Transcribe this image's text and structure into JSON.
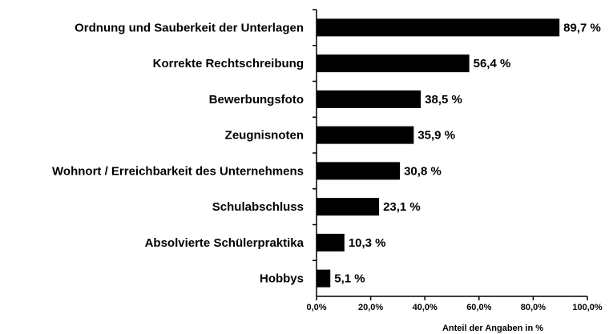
{
  "chart_data": {
    "type": "bar",
    "orientation": "horizontal",
    "x_axis_label": "Anteil der Angaben in %",
    "categories": [
      "Ordnung und Sauberkeit der Unterlagen",
      "Korrekte Rechtschreibung",
      "Bewerbungsfoto",
      "Zeugnisnoten",
      "Wohnort / Erreichbarkeit des Unternehmens",
      "Schulabschluss",
      "Absolvierte Schülerpraktika",
      "Hobbys"
    ],
    "values": [
      89.7,
      56.4,
      38.5,
      35.9,
      30.8,
      23.1,
      10.3,
      5.1
    ],
    "value_labels": [
      "89,7 %",
      "56,4 %",
      "38,5 %",
      "35,9 %",
      "30,8 %",
      "23,1 %",
      "10,3 %",
      "5,1 %"
    ],
    "color": "#000000",
    "xlim": [
      0,
      100
    ],
    "xticks": [
      {
        "value": 0,
        "label": "0,0%"
      },
      {
        "value": 20,
        "label": "20,0%"
      },
      {
        "value": 40,
        "label": "40,0%"
      },
      {
        "value": 60,
        "label": "60,0%"
      },
      {
        "value": 80,
        "label": "80,0%"
      },
      {
        "value": 100,
        "label": "100,0%"
      }
    ]
  }
}
